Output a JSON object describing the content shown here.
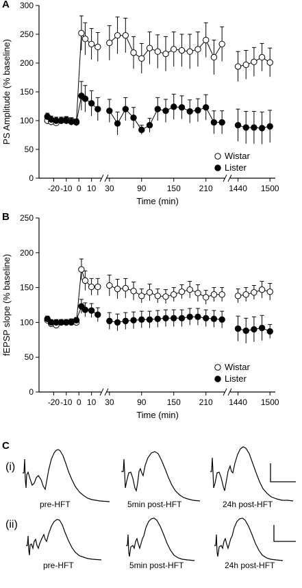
{
  "figure": {
    "panel_labels": [
      "A",
      "B",
      "C"
    ],
    "trace_labels": {
      "row_i": "(i)",
      "row_ii": "(ii)",
      "pre": "pre-HFT",
      "post5": "5min post-HFT",
      "post24": "24h post-HFT"
    }
  },
  "chart_data": [
    {
      "type": "scatter",
      "panel": "A",
      "title": "",
      "xlabel": "Time (min)",
      "ylabel": "PS Amplitude (% baseline)",
      "ylim": [
        0,
        300
      ],
      "yticks": [
        0,
        50,
        100,
        150,
        200,
        250,
        300
      ],
      "xticks": [
        -20,
        -10,
        0,
        10,
        30,
        90,
        150,
        210,
        1440,
        1500
      ],
      "axis_breaks": true,
      "legend": {
        "position": "bottom-right",
        "entries": [
          "Wistar",
          "Lister"
        ]
      },
      "series": [
        {
          "name": "Wistar",
          "marker": "open-circle",
          "segments": [
            {
              "x": [
                -25,
                -22,
                -18,
                -14,
                -10,
                -6,
                -2,
                2,
                5,
                10,
                15
              ],
              "y": [
                100,
                98,
                96,
                100,
                102,
                100,
                98,
                252,
                242,
                233,
                228
              ],
              "err": [
                6,
                6,
                5,
                6,
                5,
                5,
                5,
                30,
                28,
                27,
                25
              ]
            },
            {
              "x": [
                30,
                45,
                60,
                75,
                90,
                105,
                120,
                135,
                150,
                165,
                180,
                195,
                210,
                225,
                240
              ],
              "y": [
                235,
                248,
                248,
                218,
                208,
                226,
                220,
                216,
                224,
                222,
                220,
                224,
                240,
                210,
                233
              ],
              "err": [
                30,
                32,
                30,
                28,
                26,
                28,
                29,
                30,
                30,
                28,
                30,
                30,
                30,
                30,
                30
              ]
            },
            {
              "x": [
                1440,
                1455,
                1470,
                1485,
                1500
              ],
              "y": [
                194,
                197,
                202,
                210,
                201
              ],
              "err": [
                26,
                25,
                25,
                24,
                25
              ]
            }
          ]
        },
        {
          "name": "Lister",
          "marker": "filled-circle",
          "segments": [
            {
              "x": [
                -25,
                -22,
                -18,
                -14,
                -10,
                -6,
                -2,
                2,
                5,
                10,
                15
              ],
              "y": [
                107,
                102,
                100,
                100,
                100,
                98,
                97,
                143,
                138,
                130,
                120
              ],
              "err": [
                6,
                6,
                6,
                6,
                6,
                6,
                6,
                25,
                23,
                22,
                20
              ]
            },
            {
              "x": [
                30,
                45,
                60,
                75,
                90,
                105,
                120,
                135,
                150,
                165,
                180,
                195,
                210,
                225,
                240
              ],
              "y": [
                117,
                95,
                120,
                105,
                84,
                92,
                120,
                117,
                124,
                123,
                116,
                118,
                123,
                97,
                97
              ],
              "err": [
                20,
                20,
                20,
                18,
                8,
                12,
                20,
                20,
                22,
                20,
                20,
                20,
                22,
                20,
                20
              ]
            },
            {
              "x": [
                1440,
                1455,
                1470,
                1485,
                1500
              ],
              "y": [
                92,
                88,
                88,
                87,
                90
              ],
              "err": [
                28,
                28,
                28,
                28,
                28
              ]
            }
          ]
        }
      ]
    },
    {
      "type": "scatter",
      "panel": "B",
      "title": "",
      "xlabel": "Time (min)",
      "ylabel": "fEPSP slope (% baseline)",
      "ylim": [
        0,
        250
      ],
      "yticks": [
        0,
        50,
        100,
        150,
        200,
        250
      ],
      "xticks": [
        -20,
        -10,
        0,
        10,
        30,
        90,
        150,
        210,
        1440,
        1500
      ],
      "axis_breaks": true,
      "legend": {
        "position": "bottom-right",
        "entries": [
          "Wistar",
          "Lister"
        ]
      },
      "series": [
        {
          "name": "Wistar",
          "marker": "open-circle",
          "segments": [
            {
              "x": [
                -25,
                -22,
                -18,
                -14,
                -10,
                -6,
                -2,
                2,
                5,
                10,
                15
              ],
              "y": [
                103,
                98,
                96,
                100,
                100,
                101,
                100,
                176,
                160,
                151,
                151
              ],
              "err": [
                4,
                4,
                4,
                4,
                4,
                4,
                4,
                15,
                14,
                12,
                12
              ]
            },
            {
              "x": [
                30,
                45,
                60,
                75,
                90,
                105,
                120,
                135,
                150,
                165,
                180,
                195,
                210,
                225,
                240
              ],
              "y": [
                153,
                148,
                149,
                145,
                138,
                143,
                138,
                137,
                140,
                144,
                147,
                142,
                136,
                140,
                140
              ],
              "err": [
                15,
                14,
                14,
                13,
                10,
                12,
                10,
                10,
                10,
                10,
                12,
                12,
                10,
                10,
                10
              ]
            },
            {
              "x": [
                1440,
                1455,
                1470,
                1485,
                1500
              ],
              "y": [
                138,
                140,
                143,
                147,
                144
              ],
              "err": [
                10,
                10,
                10,
                12,
                12
              ]
            }
          ]
        },
        {
          "name": "Lister",
          "marker": "filled-circle",
          "segments": [
            {
              "x": [
                -25,
                -22,
                -18,
                -14,
                -10,
                -6,
                -2,
                2,
                5,
                10,
                15
              ],
              "y": [
                105,
                100,
                100,
                100,
                100,
                100,
                103,
                123,
                118,
                117,
                111
              ],
              "err": [
                4,
                4,
                4,
                4,
                4,
                4,
                4,
                10,
                10,
                10,
                10
              ]
            },
            {
              "x": [
                30,
                45,
                60,
                75,
                90,
                105,
                120,
                135,
                150,
                165,
                180,
                195,
                210,
                225,
                240
              ],
              "y": [
                102,
                100,
                102,
                103,
                104,
                104,
                105,
                106,
                106,
                106,
                108,
                108,
                106,
                105,
                104
              ],
              "err": [
                12,
                12,
                12,
                12,
                12,
                12,
                12,
                12,
                12,
                12,
                12,
                12,
                12,
                12,
                12
              ]
            },
            {
              "x": [
                1440,
                1455,
                1470,
                1485,
                1500
              ],
              "y": [
                91,
                88,
                90,
                92,
                87
              ],
              "err": [
                18,
                18,
                18,
                18,
                10
              ]
            }
          ]
        }
      ]
    }
  ]
}
